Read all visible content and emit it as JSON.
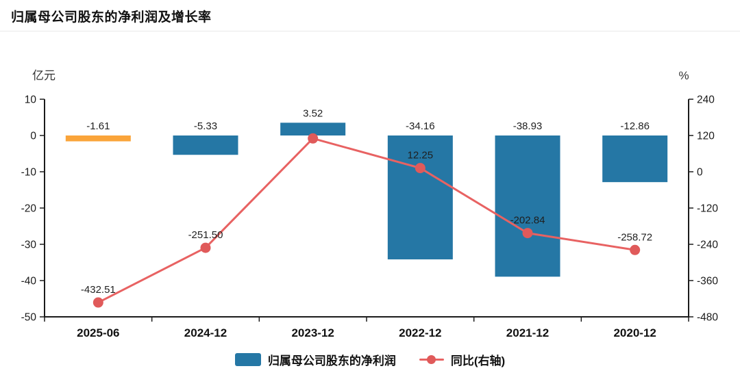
{
  "title": "归属母公司股东的净利润及增长率",
  "chart_data": {
    "type": "bar+line",
    "categories": [
      "2025-06",
      "2024-12",
      "2023-12",
      "2022-12",
      "2021-12",
      "2020-12"
    ],
    "series": [
      {
        "name": "归属母公司股东的净利润",
        "kind": "bar",
        "axis": "left",
        "values": [
          -1.61,
          -5.33,
          3.52,
          -34.16,
          -38.93,
          -12.86
        ],
        "labels": [
          "-1.61",
          "-5.33",
          "3.52",
          "-34.16",
          "-38.93",
          "-12.86"
        ],
        "colors": [
          "#FAA43A",
          "#2577A5",
          "#2577A5",
          "#2577A5",
          "#2577A5",
          "#2577A5"
        ]
      },
      {
        "name": "同比(右轴)",
        "kind": "line",
        "axis": "right",
        "values": [
          -432.51,
          -251.5,
          110.3,
          12.25,
          -202.84,
          -258.72
        ],
        "labels": [
          "-432.51",
          "-251.50",
          "",
          "12.25",
          "-202.84",
          "-258.72"
        ],
        "color": "#E86262",
        "point_color": "#E05A5A"
      }
    ],
    "left_axis": {
      "unit": "亿元",
      "ticks": [
        10,
        0,
        -10,
        -20,
        -30,
        -40,
        -50
      ],
      "range": [
        -50,
        10
      ]
    },
    "right_axis": {
      "unit": "%",
      "ticks": [
        240,
        120,
        0,
        -120,
        -240,
        -360,
        -480
      ],
      "range": [
        -480,
        240
      ]
    },
    "legend": [
      {
        "label": "归属母公司股东的净利润",
        "marker": "bar"
      },
      {
        "label": "同比(右轴)",
        "marker": "line"
      }
    ],
    "grid": false,
    "legend_position": "bottom"
  }
}
